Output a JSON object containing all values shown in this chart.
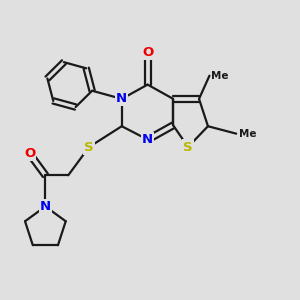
{
  "background_color": "#e0e0e0",
  "atom_colors": {
    "C": "#1a1a1a",
    "N": "#0000ee",
    "O": "#ee0000",
    "S": "#b8b800"
  },
  "figsize": [
    3.0,
    3.0
  ],
  "dpi": 100
}
